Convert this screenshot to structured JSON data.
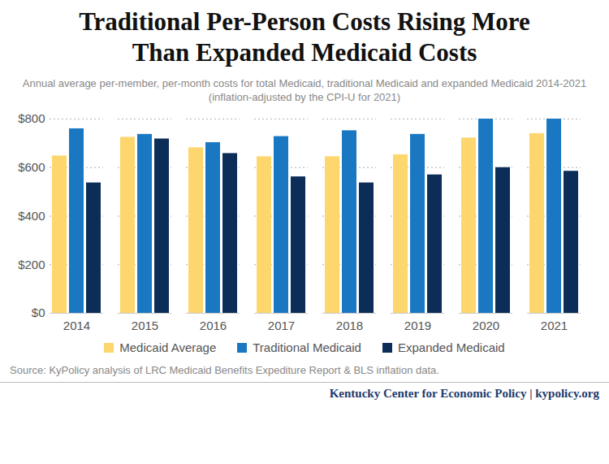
{
  "chart_data": {
    "type": "bar",
    "title": "Traditional Per-Person Costs Rising More Than Expanded Medicaid Costs",
    "subtitle": "Annual average per-member, per-month costs for total Medicaid, traditional Medicaid and expanded Medicaid 2014-2021 (inflation-adjusted by the CPI-U for 2021)",
    "source": "Source: KyPolicy analysis of LRC Medicaid Benefits Expediture Report & BLS inflation data.",
    "credit": "Kentucky Center for Economic Policy | kypolicy.org",
    "categories": [
      "2014",
      "2015",
      "2016",
      "2017",
      "2018",
      "2019",
      "2020",
      "2021"
    ],
    "series": [
      {
        "name": "Medicaid Average",
        "color": "#fdd66e",
        "values": [
          648,
          725,
          682,
          645,
          645,
          653,
          722,
          740
        ]
      },
      {
        "name": "Traditional Medicaid",
        "color": "#1a78c2",
        "values": [
          760,
          737,
          703,
          728,
          752,
          737,
          800,
          800
        ]
      },
      {
        "name": "Expanded Medicaid",
        "color": "#0c2d57",
        "values": [
          537,
          718,
          658,
          562,
          537,
          570,
          600,
          585
        ]
      }
    ],
    "ylim": [
      0,
      800
    ],
    "yticks": [
      {
        "value": 0,
        "label": "$0"
      },
      {
        "value": 200,
        "label": "$200"
      },
      {
        "value": 400,
        "label": "$400"
      },
      {
        "value": 600,
        "label": "$600"
      },
      {
        "value": 800,
        "label": "$800"
      }
    ],
    "grid": true,
    "legend": "bottom"
  }
}
